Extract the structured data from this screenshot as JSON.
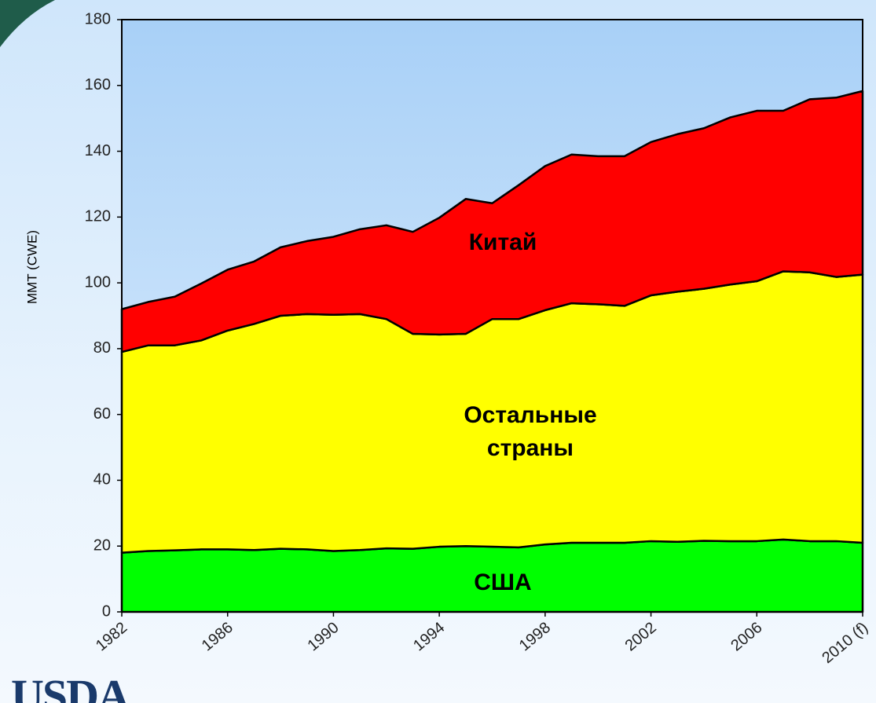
{
  "chart_data": {
    "type": "stacked_area",
    "y_label": "MMT (CWE)",
    "x": [
      1982,
      1983,
      1984,
      1985,
      1986,
      1987,
      1988,
      1989,
      1990,
      1991,
      1992,
      1993,
      1994,
      1995,
      1996,
      1997,
      1998,
      1999,
      2000,
      2001,
      2002,
      2003,
      2004,
      2005,
      2006,
      2007,
      2008,
      2009,
      2010
    ],
    "xlim": [
      1982,
      2010
    ],
    "xticks": [
      1982,
      1986,
      1990,
      1994,
      1998,
      2002,
      2006,
      {
        "value": 2010,
        "label": "2010 (f)"
      }
    ],
    "ylim": [
      0,
      180
    ],
    "yticks": [
      0,
      20,
      40,
      60,
      80,
      100,
      120,
      140,
      160,
      180
    ],
    "series": [
      {
        "name": "США",
        "color": "#00ff00",
        "values": [
          18,
          18.5,
          18.7,
          19,
          19,
          18.8,
          19.2,
          19,
          18.5,
          18.8,
          19.3,
          19.2,
          19.8,
          20,
          19.8,
          19.6,
          20.5,
          21,
          21,
          21,
          21.5,
          21.3,
          21.6,
          21.5,
          21.5,
          22,
          21.5,
          21.5,
          21
        ]
      },
      {
        "name": "Остальные страны",
        "color": "#ffff00",
        "values": [
          61,
          62.5,
          62.3,
          63.5,
          66.5,
          68.7,
          70.8,
          71.5,
          71.8,
          71.7,
          69.7,
          65.3,
          64.5,
          64.5,
          69.2,
          69.4,
          71.2,
          72.8,
          72.5,
          72,
          74.7,
          76,
          76.6,
          78,
          79,
          81.5,
          81.7,
          80.3,
          81.5
        ]
      },
      {
        "name": "Китай",
        "color": "#ff0000",
        "values": [
          13,
          13.2,
          14.8,
          17.3,
          18.5,
          19,
          20.8,
          22.2,
          23.7,
          25.8,
          28.5,
          31,
          35.5,
          41,
          35.2,
          40.7,
          43.8,
          45.2,
          45,
          45.5,
          46.6,
          47.9,
          48.8,
          50.8,
          51.8,
          48.8,
          52.6,
          54.5,
          55.8
        ]
      }
    ]
  },
  "logo": "USDA"
}
